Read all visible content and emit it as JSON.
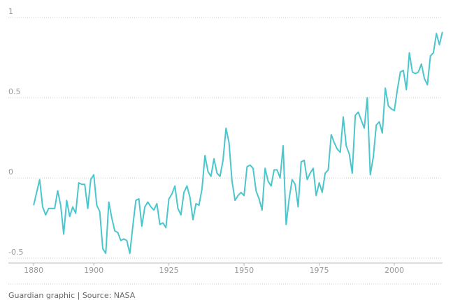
{
  "chart_data": {
    "type": "line",
    "x": [
      1880,
      1881,
      1882,
      1883,
      1884,
      1885,
      1886,
      1887,
      1888,
      1889,
      1890,
      1891,
      1892,
      1893,
      1894,
      1895,
      1896,
      1897,
      1898,
      1899,
      1900,
      1901,
      1902,
      1903,
      1904,
      1905,
      1906,
      1907,
      1908,
      1909,
      1910,
      1911,
      1912,
      1913,
      1914,
      1915,
      1916,
      1917,
      1918,
      1919,
      1920,
      1921,
      1922,
      1923,
      1924,
      1925,
      1926,
      1927,
      1928,
      1929,
      1930,
      1931,
      1932,
      1933,
      1934,
      1935,
      1936,
      1937,
      1938,
      1939,
      1940,
      1941,
      1942,
      1943,
      1944,
      1945,
      1946,
      1947,
      1948,
      1949,
      1950,
      1951,
      1952,
      1953,
      1954,
      1955,
      1956,
      1957,
      1958,
      1959,
      1960,
      1961,
      1962,
      1963,
      1964,
      1965,
      1966,
      1967,
      1968,
      1969,
      1970,
      1971,
      1972,
      1973,
      1974,
      1975,
      1976,
      1977,
      1978,
      1979,
      1980,
      1981,
      1982,
      1983,
      1984,
      1985,
      1986,
      1987,
      1988,
      1989,
      1990,
      1991,
      1992,
      1993,
      1994,
      1995,
      1996,
      1997,
      1998,
      1999,
      2000,
      2001,
      2002,
      2003,
      2004,
      2005,
      2006,
      2007,
      2008,
      2009,
      2010,
      2011,
      2012,
      2013,
      2014,
      2015,
      2016
    ],
    "series": [
      {
        "color": "#4bc6cc",
        "values": [
          -0.17,
          -0.09,
          -0.01,
          -0.18,
          -0.23,
          -0.19,
          -0.19,
          -0.19,
          -0.08,
          -0.17,
          -0.35,
          -0.14,
          -0.24,
          -0.18,
          -0.22,
          -0.03,
          -0.04,
          -0.04,
          -0.19,
          -0.01,
          0.02,
          -0.17,
          -0.21,
          -0.44,
          -0.47,
          -0.15,
          -0.25,
          -0.33,
          -0.34,
          -0.39,
          -0.38,
          -0.39,
          -0.47,
          -0.3,
          -0.14,
          -0.13,
          -0.3,
          -0.18,
          -0.15,
          -0.18,
          -0.2,
          -0.16,
          -0.29,
          -0.28,
          -0.31,
          -0.13,
          -0.1,
          -0.05,
          -0.19,
          -0.23,
          -0.09,
          -0.05,
          -0.12,
          -0.26,
          -0.16,
          -0.17,
          -0.07,
          0.14,
          0.04,
          0.01,
          0.12,
          0.03,
          0.01,
          0.11,
          0.31,
          0.22,
          -0.02,
          -0.14,
          -0.11,
          -0.09,
          -0.11,
          0.07,
          0.08,
          0.06,
          -0.08,
          -0.13,
          -0.2,
          0.06,
          -0.02,
          -0.05,
          0.05,
          0.05,
          0.0,
          0.2,
          -0.29,
          -0.13,
          -0.01,
          -0.04,
          -0.18,
          0.1,
          0.11,
          -0.01,
          0.03,
          0.06,
          -0.11,
          -0.03,
          -0.09,
          0.03,
          0.05,
          0.27,
          0.22,
          0.18,
          0.16,
          0.38,
          0.2,
          0.15,
          0.03,
          0.39,
          0.41,
          0.36,
          0.31,
          0.5,
          0.02,
          0.13,
          0.33,
          0.35,
          0.28,
          0.56,
          0.45,
          0.43,
          0.42,
          0.55,
          0.66,
          0.67,
          0.55,
          0.78,
          0.66,
          0.65,
          0.66,
          0.71,
          0.62,
          0.58,
          0.76,
          0.78,
          0.9,
          0.83,
          0.91
        ]
      }
    ],
    "xlim": [
      1871.6,
      2016.5
    ],
    "xticks": [
      1880,
      1900,
      1925,
      1950,
      1975,
      2000
    ],
    "ylim": [
      -0.53,
      1
    ],
    "yticks": [
      1,
      0.5,
      0,
      -0.5
    ],
    "grid": true,
    "source": "Guardian graphic | Source: NASA"
  }
}
